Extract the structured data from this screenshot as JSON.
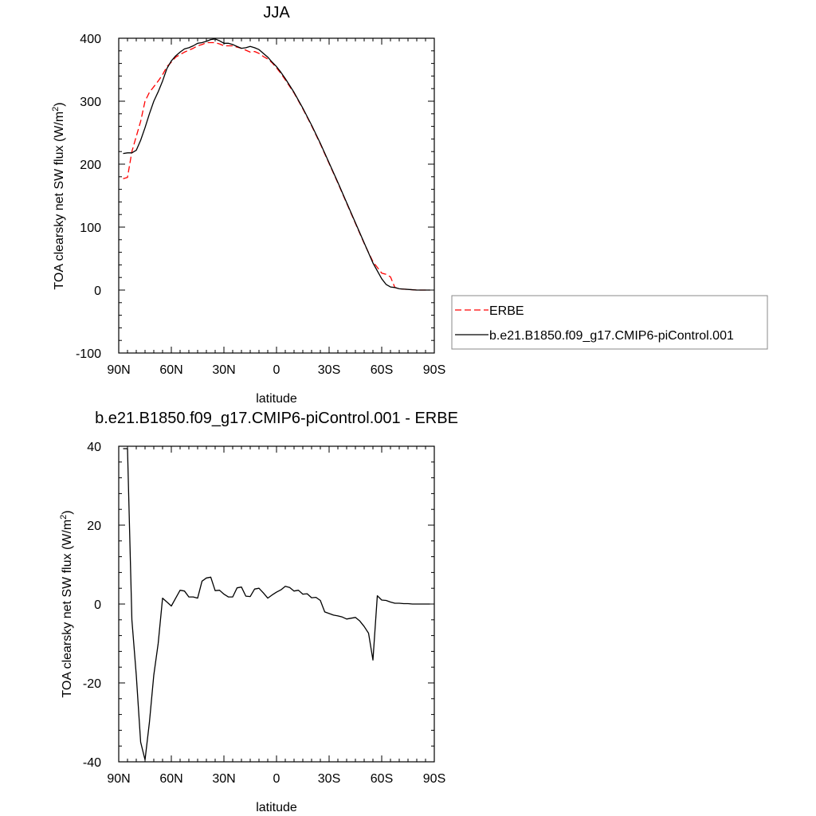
{
  "chart_data": [
    {
      "type": "line",
      "title": "JJA",
      "xlabel": "latitude",
      "ylabel": "TOA clearsky net SW flux (W/m",
      "ylabel_sup": "2",
      "ylabel_end": ")",
      "xlim": [
        90,
        -90
      ],
      "ylim": [
        -100,
        400
      ],
      "x_tick_values": [
        90,
        60,
        30,
        0,
        -30,
        -60,
        -90
      ],
      "x_tick_labels": [
        "90N",
        "60N",
        "30N",
        "0",
        "30S",
        "60S",
        "90S"
      ],
      "y_tick_values": [
        -100,
        0,
        100,
        200,
        300,
        400
      ],
      "y_tick_labels": [
        "-100",
        "0",
        "100",
        "200",
        "300",
        "400"
      ],
      "legend": {
        "position": "right",
        "box": true
      },
      "series": [
        {
          "name": "ERBE",
          "color": "#ff0000",
          "dash": "dashed",
          "x": [
            87.5,
            85,
            82.5,
            80,
            77.5,
            75,
            72.5,
            70,
            67.5,
            65,
            62.5,
            60,
            57.5,
            55,
            52.5,
            50,
            47.5,
            45,
            42.5,
            40,
            37.5,
            35,
            32.5,
            30,
            27.5,
            25,
            22.5,
            20,
            17.5,
            15,
            12.5,
            10,
            7.5,
            5,
            2.5,
            0,
            -2.5,
            -5,
            -10,
            -15,
            -20,
            -25,
            -30,
            -35,
            -40,
            -45,
            -50,
            -55,
            -60,
            -62.5,
            -65,
            -67.5,
            -70,
            -75,
            -80,
            -85,
            -87.5
          ],
          "y": [
            177,
            179,
            220,
            244,
            268,
            300,
            314,
            323,
            332,
            342,
            355,
            362,
            370,
            374,
            378,
            381,
            384,
            388,
            390,
            393,
            393,
            393,
            391,
            388,
            388,
            388,
            386,
            384,
            381,
            378,
            379,
            376,
            371,
            367,
            361,
            353,
            344,
            334,
            313,
            288,
            261,
            232,
            201,
            170,
            138,
            106,
            74,
            45,
            27,
            25,
            21,
            4,
            2,
            1,
            0,
            0,
            0
          ]
        },
        {
          "name": "b.e21.B1850.f09_g17.CMIP6-piControl.001",
          "color": "#000000",
          "dash": "solid",
          "x": [
            87.5,
            85,
            82.5,
            80,
            77.5,
            75,
            72.5,
            70,
            67.5,
            65,
            62.5,
            60,
            57.5,
            55,
            52.5,
            50,
            47.5,
            45,
            42.5,
            40,
            37.5,
            35,
            32.5,
            30,
            27.5,
            25,
            22.5,
            20,
            17.5,
            15,
            12.5,
            10,
            7.5,
            5,
            2.5,
            0,
            -2.5,
            -5,
            -10,
            -15,
            -20,
            -25,
            -30,
            -35,
            -40,
            -45,
            -50,
            -55,
            -60,
            -62.5,
            -65,
            -67.5,
            -70,
            -75,
            -80,
            -85,
            -87.5
          ],
          "y": [
            217,
            218,
            218,
            222,
            238,
            258,
            280,
            300,
            315,
            332,
            352,
            364,
            372,
            378,
            383,
            385,
            388,
            392,
            393,
            395,
            398,
            399,
            396,
            392,
            392,
            390,
            387,
            384,
            385,
            387,
            385,
            382,
            376,
            370,
            362,
            355,
            346,
            336,
            314,
            289,
            262,
            233,
            202,
            171,
            139,
            107,
            75,
            43,
            18,
            9,
            5,
            4,
            2,
            1,
            0,
            0,
            0
          ]
        }
      ]
    },
    {
      "type": "line",
      "title": "b.e21.B1850.f09_g17.CMIP6-piControl.001 - ERBE",
      "xlabel": "latitude",
      "ylabel": "TOA clearsky net SW flux (W/m",
      "ylabel_sup": "2",
      "ylabel_end": ")",
      "xlim": [
        90,
        -90
      ],
      "ylim": [
        -40,
        40
      ],
      "x_tick_values": [
        90,
        60,
        30,
        0,
        -30,
        -60,
        -90
      ],
      "x_tick_labels": [
        "90N",
        "60N",
        "30N",
        "0",
        "30S",
        "60S",
        "90S"
      ],
      "y_tick_values": [
        -40,
        -20,
        0,
        20,
        40
      ],
      "y_tick_labels": [
        "-40",
        "-20",
        "0",
        "20",
        "40"
      ],
      "series": [
        {
          "color": "#000000",
          "dash": "solid",
          "x": [
            87.5,
            85,
            82.5,
            80,
            77.5,
            75,
            72.5,
            70,
            67.5,
            65,
            62.5,
            60,
            57.5,
            55,
            52.5,
            50,
            47.5,
            45,
            42.5,
            40,
            37.5,
            35,
            32.5,
            30,
            27.5,
            25,
            22.5,
            20,
            17.5,
            15,
            12.5,
            10,
            7.5,
            5,
            2.5,
            0,
            -2.5,
            -5,
            -7.5,
            -10,
            -12.5,
            -15,
            -17.5,
            -20,
            -22.5,
            -25,
            -27.5,
            -30,
            -32.5,
            -35,
            -37.5,
            -40,
            -42.5,
            -45,
            -47.5,
            -50,
            -52.5,
            -55,
            -57.5,
            -60,
            -62.5,
            -65,
            -67.5,
            -70,
            -72.5,
            -75,
            -77.5,
            -80,
            -82.5,
            -85,
            -87.5
          ],
          "y": [
            39.4,
            39.4,
            -4,
            -18,
            -35,
            -39.5,
            -30,
            -18,
            -10,
            1.5,
            0.5,
            -0.5,
            1.5,
            3.5,
            3.3,
            1.8,
            1.8,
            1.5,
            5.8,
            6.6,
            6.8,
            3.4,
            3.5,
            2.5,
            1.8,
            1.8,
            4.1,
            4.3,
            2.0,
            1.9,
            3.8,
            4.0,
            2.8,
            1.5,
            2.3,
            3.0,
            3.6,
            4.5,
            4.2,
            3.3,
            3.5,
            2.5,
            2.6,
            1.6,
            1.7,
            0.9,
            -2.0,
            -2.4,
            -2.8,
            -3.0,
            -3.3,
            -3.8,
            -3.6,
            -3.4,
            -4.3,
            -5.7,
            -7.4,
            -14.2,
            2.1,
            1.0,
            0.9,
            0.5,
            0.2,
            0.2,
            0.1,
            0.1,
            0.0,
            0.0,
            0.0,
            0.0,
            0.0
          ]
        }
      ]
    }
  ]
}
